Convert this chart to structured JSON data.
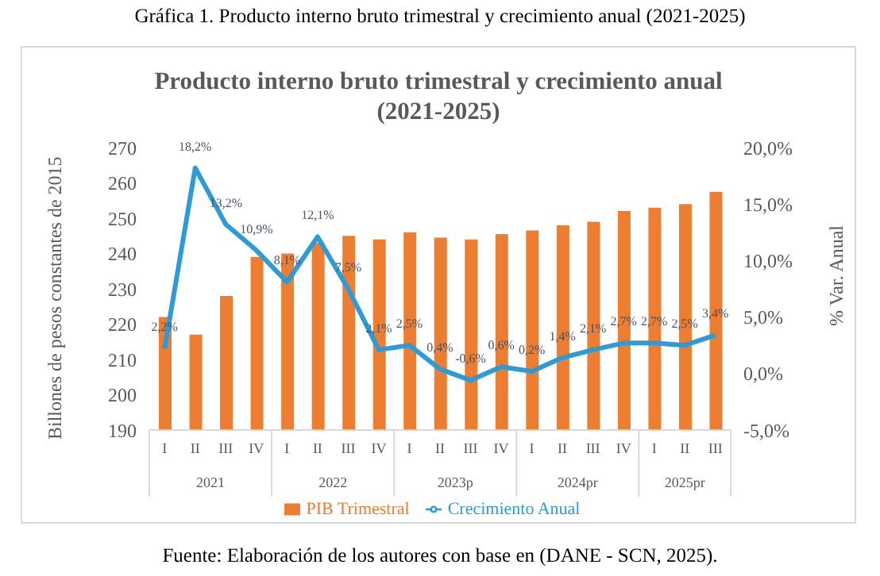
{
  "chart_data": {
    "type": "bar",
    "title": "Producto interno bruto trimestral y crecimiento anual\n(2021-2025)",
    "ylabel": "Billones de pesos constantes de 2015",
    "y2label": "% Var. Anual",
    "categories": [
      "I",
      "II",
      "III",
      "IV",
      "I",
      "II",
      "III",
      "IV",
      "I",
      "II",
      "III",
      "IV",
      "I",
      "II",
      "III",
      "IV",
      "I",
      "II",
      "III"
    ],
    "series": [
      {
        "name": "PIB Trimestral",
        "color": "#ed7d31",
        "values": [
          222,
          217,
          228,
          239,
          240,
          243,
          245,
          244,
          246,
          244.5,
          244,
          245.5,
          246.5,
          248,
          249,
          252,
          253,
          254,
          257.5
        ]
      },
      {
        "name": "Crecimiento Anual",
        "type": "line",
        "axis": "y2",
        "color": "#2e9bd6",
        "marker": "none",
        "values": [
          2.2,
          18.2,
          13.2,
          10.9,
          8.1,
          12.1,
          7.5,
          2.1,
          2.5,
          0.4,
          -0.6,
          0.6,
          0.2,
          1.4,
          2.1,
          2.7,
          2.7,
          2.5,
          3.4
        ],
        "value_labels": [
          "2,2%",
          "18,2%",
          "13,2%",
          "10,9%",
          "8,1%",
          "12,1%",
          "7,5%",
          "2,1%",
          "2,5%",
          "0,4%",
          "-0,6%",
          "0,6%",
          "0,2%",
          "1,4%",
          "2,1%",
          "2,7%",
          "2,7%",
          "2,5%",
          "3,4%"
        ]
      }
    ],
    "ylim": [
      190,
      270
    ],
    "yticks": [
      190,
      200,
      210,
      220,
      230,
      240,
      250,
      260,
      270
    ],
    "y2lim": [
      -5,
      20
    ],
    "y2ticks": [
      {
        "value": -5,
        "label": "-5,0%"
      },
      {
        "value": 0,
        "label": "0,0%"
      },
      {
        "value": 5,
        "label": "5,0%"
      },
      {
        "value": 10,
        "label": "10,0%"
      },
      {
        "value": 15,
        "label": "15,0%"
      },
      {
        "value": 20,
        "label": "20,0%"
      }
    ],
    "legend": "bottom",
    "annotations": [
      "Gráfica 1. Producto interno bruto trimestral y crecimiento anual (2021-2025)",
      "2021",
      "2022",
      "2023p",
      "2024pr",
      "2025pr",
      "Fuente: Elaboración de los autores con base en (DANE - SCN, 2025)."
    ]
  }
}
